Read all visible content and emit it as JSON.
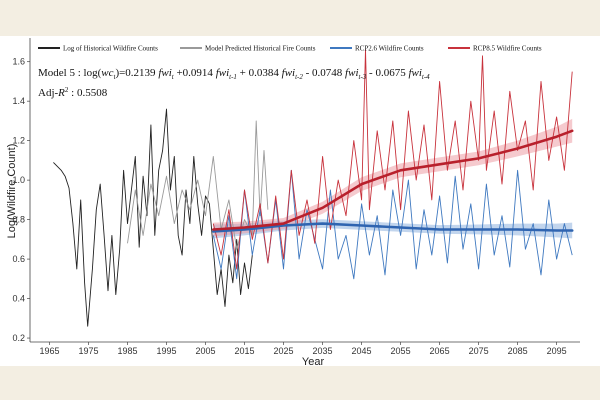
{
  "chart_data": {
    "type": "line",
    "xlabel": "Year",
    "ylabel": "Log(Wildfire Count)",
    "xlim": [
      1960,
      2101
    ],
    "ylim": [
      0.18,
      1.72
    ],
    "x_ticks": [
      1965,
      1975,
      1985,
      1995,
      2005,
      2015,
      2025,
      2035,
      2045,
      2055,
      2065,
      2075,
      2085,
      2095
    ],
    "y_ticks": [
      0.2,
      0.4,
      0.6,
      0.8,
      1.0,
      1.2,
      1.4,
      1.6
    ],
    "grid": false,
    "legend_position": "top",
    "annotations": {
      "model_prefix": "Model 5 : log(",
      "model_wc": "wc",
      "model_t": "t",
      "model_eq1": ")=0.2139 ",
      "model_fwi": "fwi",
      "model_sub_t": "t",
      "model_eq2": " +0.0914 ",
      "model_sub_t1": "t-1",
      "model_eq3": " + 0.0384 ",
      "model_sub_t2": "t-2",
      "model_eq4": " - 0.0748 ",
      "model_sub_t3": "t-3",
      "model_eq5": " - 0.0675 ",
      "model_sub_t4": "t-4",
      "adj_prefix": "Adj-",
      "adj_r": "R",
      "adj_sup": "2",
      "adj_value": " : 0.5508"
    },
    "series": [
      {
        "name": "Log of Historical Wildfire Counts",
        "color": "#222222",
        "x": [
          1966,
          1968,
          1969,
          1970,
          1971,
          1972,
          1973,
          1974,
          1974.8,
          1976,
          1977,
          1978,
          1979,
          1980,
          1981,
          1982,
          1983,
          1984,
          1985,
          1986,
          1987,
          1988,
          1989,
          1990,
          1991,
          1992,
          1993,
          1994,
          1995,
          1996,
          1997,
          1998,
          1999,
          2000,
          2001,
          2002,
          2003,
          2004,
          2005,
          2006,
          2008,
          2009,
          2010,
          2011,
          2012,
          2013,
          2014,
          2015,
          2016,
          2017
        ],
        "y": [
          1.09,
          1.05,
          1.02,
          0.96,
          0.78,
          0.55,
          0.9,
          0.48,
          0.26,
          0.55,
          0.85,
          0.98,
          0.72,
          0.44,
          0.72,
          0.42,
          0.65,
          1.05,
          0.78,
          0.95,
          1.12,
          0.66,
          1.02,
          0.82,
          1.28,
          0.72,
          1.05,
          1.15,
          1.36,
          0.95,
          1.12,
          0.72,
          0.62,
          0.95,
          0.78,
          1.12,
          0.88,
          0.72,
          0.92,
          0.88,
          0.42,
          0.55,
          0.36,
          0.62,
          0.48,
          0.7,
          0.42,
          0.58,
          0.45,
          0.62
        ]
      },
      {
        "name": "Model Predicted Historical Fire Counts",
        "color": "#9a9a9a",
        "x": [
          1985,
          1987,
          1989,
          1991,
          1993,
          1995,
          1997,
          1999,
          2001,
          2003,
          2005,
          2007,
          2009,
          2011,
          2013,
          2015,
          2017,
          2018,
          2019,
          2020,
          2021
        ],
        "y": [
          0.68,
          0.95,
          0.72,
          0.98,
          0.82,
          1.02,
          0.78,
          0.95,
          0.85,
          1.0,
          0.82,
          1.12,
          0.75,
          0.9,
          0.65,
          0.8,
          0.72,
          1.3,
          0.82,
          1.15,
          0.85
        ]
      },
      {
        "name": "RCP2.6 Wildfire Counts",
        "color": "#3f79c0",
        "x": [
          2007,
          2009,
          2011,
          2013,
          2015,
          2017,
          2019,
          2021,
          2023,
          2025,
          2027,
          2029,
          2031,
          2033,
          2035,
          2037,
          2039,
          2041,
          2043,
          2045,
          2047,
          2049,
          2051,
          2053,
          2055,
          2057,
          2059,
          2061,
          2063,
          2065,
          2067,
          2069,
          2071,
          2073,
          2075,
          2077,
          2079,
          2081,
          2083,
          2085,
          2087,
          2089,
          2091,
          2093,
          2095,
          2097,
          2099
        ],
        "y": [
          0.72,
          0.55,
          0.82,
          0.5,
          0.95,
          0.62,
          0.85,
          0.58,
          0.9,
          0.55,
          1.05,
          0.6,
          0.85,
          0.7,
          0.55,
          0.95,
          0.6,
          0.72,
          0.5,
          0.88,
          0.62,
          0.82,
          0.52,
          0.95,
          0.72,
          1.0,
          0.55,
          0.85,
          0.62,
          0.92,
          0.58,
          1.02,
          0.65,
          0.88,
          0.55,
          0.98,
          0.62,
          0.82,
          0.56,
          1.05,
          0.65,
          0.78,
          0.52,
          0.9,
          0.6,
          0.78,
          0.62
        ]
      },
      {
        "name": "RCP8.5 Wildfire Counts",
        "color": "#c8323c",
        "x": [
          2007,
          2009,
          2011,
          2013,
          2015,
          2017,
          2019,
          2021,
          2023,
          2025,
          2027,
          2029,
          2031,
          2033,
          2035,
          2037,
          2039,
          2041,
          2043,
          2045,
          2046,
          2047,
          2049,
          2051,
          2053,
          2055,
          2057,
          2059,
          2061,
          2063,
          2065,
          2067,
          2069,
          2071,
          2073,
          2075,
          2076,
          2077,
          2079,
          2081,
          2083,
          2085,
          2087,
          2089,
          2091,
          2093,
          2095,
          2097,
          2099
        ],
        "y": [
          0.78,
          0.62,
          0.85,
          0.55,
          0.95,
          0.7,
          0.88,
          0.58,
          0.92,
          0.6,
          1.05,
          0.72,
          0.9,
          0.68,
          1.12,
          0.75,
          1.0,
          0.82,
          1.2,
          0.9,
          1.66,
          0.85,
          1.25,
          0.95,
          1.3,
          0.85,
          1.35,
          1.0,
          1.28,
          0.9,
          1.5,
          1.05,
          1.3,
          0.95,
          1.4,
          1.1,
          1.63,
          1.05,
          1.35,
          0.98,
          1.45,
          1.15,
          1.3,
          0.95,
          1.5,
          1.1,
          1.32,
          1.05,
          1.55
        ]
      }
    ],
    "trends": [
      {
        "series": "RCP2.6 Wildfire Counts",
        "color": "#2f64b0",
        "band_color": "#8fb2de",
        "x": [
          2007,
          2015,
          2025,
          2035,
          2045,
          2055,
          2065,
          2075,
          2085,
          2095,
          2099
        ],
        "y": [
          0.74,
          0.75,
          0.77,
          0.78,
          0.77,
          0.76,
          0.75,
          0.75,
          0.75,
          0.745,
          0.745
        ],
        "band": [
          0.035,
          0.03,
          0.025,
          0.022,
          0.022,
          0.022,
          0.022,
          0.025,
          0.03,
          0.035,
          0.04
        ]
      },
      {
        "series": "RCP8.5 Wildfire Counts",
        "color": "#b8202c",
        "band_color": "#ec9fa5",
        "x": [
          2007,
          2015,
          2025,
          2035,
          2045,
          2055,
          2065,
          2075,
          2085,
          2095,
          2099
        ],
        "y": [
          0.75,
          0.76,
          0.78,
          0.86,
          0.98,
          1.05,
          1.08,
          1.11,
          1.16,
          1.22,
          1.25
        ],
        "band": [
          0.035,
          0.03,
          0.028,
          0.03,
          0.035,
          0.035,
          0.035,
          0.035,
          0.04,
          0.05,
          0.06
        ]
      }
    ]
  }
}
